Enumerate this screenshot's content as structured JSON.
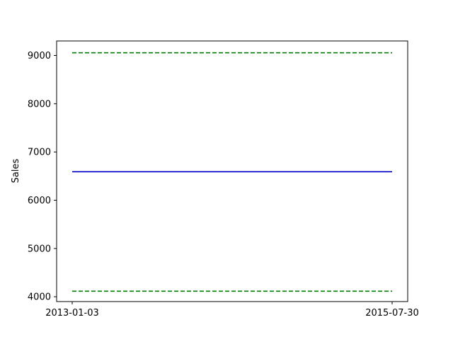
{
  "chart_data": {
    "type": "line",
    "title": "",
    "xlabel": "",
    "ylabel": "Sales",
    "x_ticks": [
      "2013-01-03",
      "2015-07-30"
    ],
    "y_ticks": [
      4000,
      5000,
      6000,
      7000,
      8000,
      9000
    ],
    "ylim": [
      3900,
      9300
    ],
    "grid": false,
    "legend": "none",
    "series": [
      {
        "color": "#0000cc",
        "style": "solid",
        "x": [
          "2013-01-03",
          "2015-07-30"
        ],
        "values": [
          6590,
          6590
        ]
      },
      {
        "color": "#008000",
        "style": "dashed",
        "x": [
          "2013-01-03",
          "2015-07-30"
        ],
        "values": [
          9055,
          9055
        ]
      },
      {
        "color": "#008000",
        "style": "dashed",
        "x": [
          "2013-01-03",
          "2015-07-30"
        ],
        "values": [
          4115,
          4115
        ]
      }
    ]
  }
}
